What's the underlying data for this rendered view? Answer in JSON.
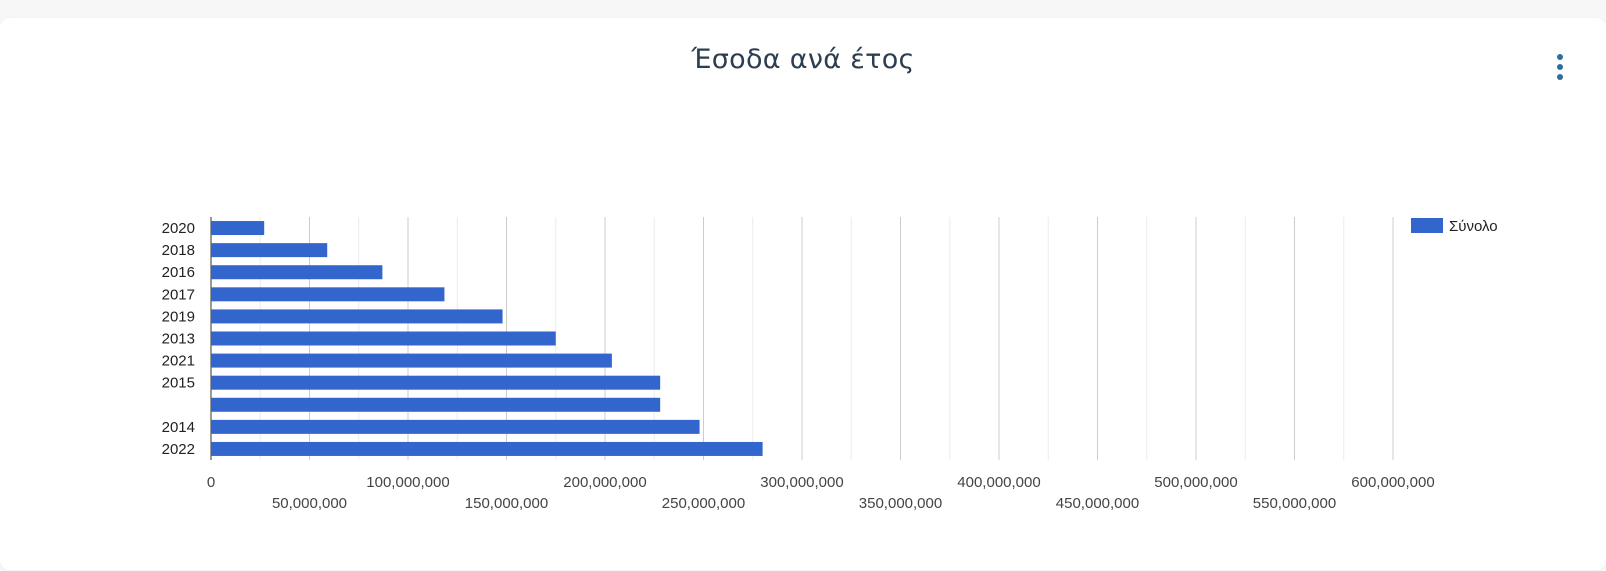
{
  "title": "Έσοδα ανά έτος",
  "menu": {
    "icon": "more-vert-icon"
  },
  "colors": {
    "bar": "#3366cc",
    "grid_major": "#cccccc",
    "grid_minor": "#ebebeb",
    "axis": "#333333"
  },
  "chart_data": {
    "type": "bar",
    "orientation": "horizontal",
    "title": "Έσοδα ανά έτος",
    "xlabel": "",
    "ylabel": "",
    "categories": [
      "2020",
      "2018",
      "2016",
      "2017",
      "2019",
      "2013",
      "2021",
      "2015",
      "",
      "2014",
      "2022"
    ],
    "series": [
      {
        "name": "Σύνολο",
        "values": [
          27000000,
          59000000,
          87000000,
          118500000,
          148000000,
          175000000,
          203500000,
          228000000,
          228000000,
          248000000,
          280000000
        ]
      }
    ],
    "xlim": [
      0,
      600000000
    ],
    "x_ticks": [
      0,
      50000000,
      100000000,
      150000000,
      200000000,
      250000000,
      300000000,
      350000000,
      400000000,
      450000000,
      500000000,
      550000000,
      600000000
    ],
    "x_tick_labels": [
      "0",
      "50,000,000",
      "100,000,000",
      "150,000,000",
      "200,000,000",
      "250,000,000",
      "300,000,000",
      "350,000,000",
      "400,000,000",
      "450,000,000",
      "500,000,000",
      "550,000,000",
      "600,000,000"
    ],
    "grid": true,
    "legend": {
      "position": "right",
      "entries": [
        "Σύνολο"
      ]
    }
  }
}
